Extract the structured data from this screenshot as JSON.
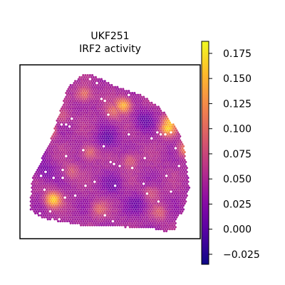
{
  "chart_data": {
    "type": "heatmap",
    "title_lines": [
      "UKF251",
      "IRF2 activity"
    ],
    "xlabel": "",
    "ylabel": "",
    "grid": false,
    "colormap": "plasma",
    "colorbar": {
      "vmin": -0.035,
      "vmax": 0.187,
      "ticks": [
        -0.025,
        0.0,
        0.025,
        0.05,
        0.075,
        0.1,
        0.125,
        0.15,
        0.175
      ],
      "tick_labels": [
        "−0.025",
        "0.000",
        "0.025",
        "0.050",
        "0.075",
        "0.100",
        "0.125",
        "0.150",
        "0.175"
      ]
    },
    "base_value": 0.045,
    "hotspots": [
      {
        "x": 0.11,
        "y": 0.64,
        "v": 0.17
      },
      {
        "x": 0.85,
        "y": 0.65,
        "v": 0.16
      },
      {
        "x": 0.58,
        "y": 0.79,
        "v": 0.155
      },
      {
        "x": 0.34,
        "y": 0.86,
        "v": 0.11
      },
      {
        "x": 0.37,
        "y": 0.5,
        "v": 0.1
      },
      {
        "x": 0.96,
        "y": 0.52,
        "v": 0.12
      },
      {
        "x": 0.86,
        "y": 0.68,
        "v": 0.15
      },
      {
        "x": 0.15,
        "y": 0.21,
        "v": 0.165
      },
      {
        "x": 0.52,
        "y": 0.75,
        "v": 0.1
      },
      {
        "x": 0.43,
        "y": 0.15,
        "v": 0.09
      },
      {
        "x": 0.62,
        "y": 0.45,
        "v": 0.09
      },
      {
        "x": 0.26,
        "y": 0.38,
        "v": 0.085
      },
      {
        "x": 0.75,
        "y": 0.25,
        "v": 0.08
      },
      {
        "x": 0.8,
        "y": 0.13,
        "v": 0.085
      },
      {
        "x": 0.2,
        "y": 0.72,
        "v": 0.08
      }
    ],
    "coldspots": [
      {
        "x": 0.48,
        "y": 0.58,
        "v": 0.005
      },
      {
        "x": 0.7,
        "y": 0.7,
        "v": 0.01
      },
      {
        "x": 0.1,
        "y": 0.38,
        "v": 0.015
      },
      {
        "x": 0.52,
        "y": 0.3,
        "v": 0.02
      },
      {
        "x": 0.67,
        "y": 0.18,
        "v": 0.015
      }
    ]
  }
}
